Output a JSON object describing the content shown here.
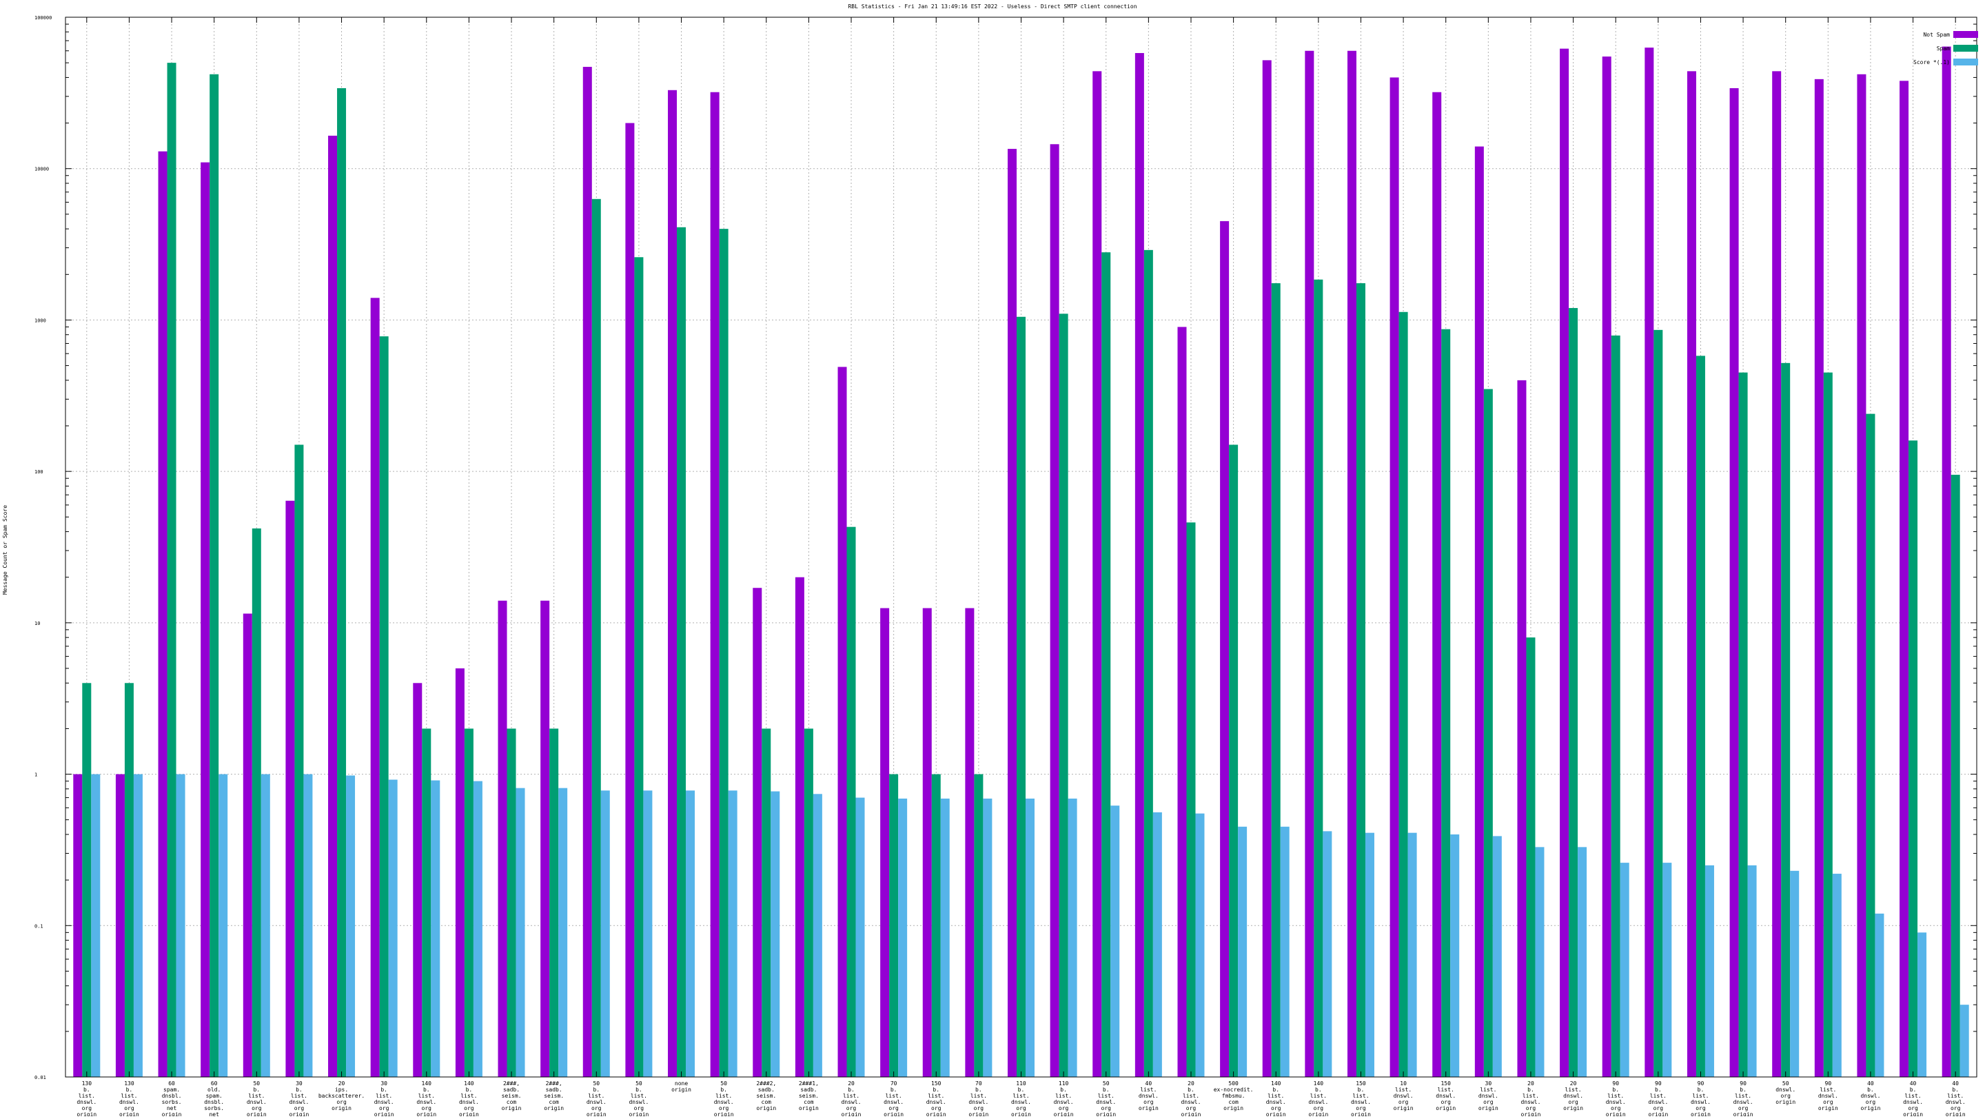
{
  "chart_data": {
    "type": "bar",
    "title": "RBL Statistics - Fri Jan 21 13:49:16 EST 2022 - Useless - Direct SMTP client connection",
    "ylabel": "Message Count or Spam Score",
    "xlabel": "",
    "y_scale": "log",
    "ylim": [
      0.01,
      100000
    ],
    "y_ticks": [
      "0.01",
      "0.1",
      "1",
      "10",
      "100",
      "1000",
      "10000",
      "100000"
    ],
    "grid": true,
    "legend_position": "top-right",
    "categories": [
      "130 b. list. dnswl. org origin",
      "130 b. list. dnswl. org origin",
      "60 spam. dnsbl. sorbs. net origin",
      "60 old. spam. dnsbl. sorbs. net origin",
      "50 b. list. dnswl. org origin",
      "30 b. list. dnswl. org origin",
      "20 ips. backscatterer. org origin",
      "30 b. list. dnswl. org origin",
      "140 b. list. dnswl. org origin",
      "140 b. list. dnswl. org origin",
      "2###, sadb. seism. com origin",
      "2###, sadb. seism. com origin",
      "50 b. list. dnswl. org origin",
      "50 b. list. dnswl. org origin",
      "none origin",
      "50 b. list. dnswl. org origin",
      "2###2, sadb. seism. com origin",
      "2###1, sadb. seism. com origin",
      "20 b. list. dnswl. org origin",
      "70 b. list. dnswl. org origin",
      "150 b. list. dnswl. org origin",
      "70 b. list. dnswl. org origin",
      "110 b. list. dnswl. org origin",
      "110 b. list. dnswl. org origin",
      "50 b. list. dnswl. org origin",
      "40 list. dnswl. org origin",
      "20 b. list. dnswl. org origin",
      "500 ex-nocredit. fmbsmu. com origin",
      "140 b. list. dnswl. org origin",
      "140 b. list. dnswl. org origin",
      "150 b. list. dnswl. org origin",
      "10 list. dnswl. org origin",
      "150 list. dnswl. org origin",
      "30 list. dnswl. org origin",
      "20 b. list. dnswl. org origin",
      "20 list. dnswl. org origin",
      "90 b. list. dnswl. org origin",
      "90 b. list. dnswl. org origin",
      "90 b. list. dnswl. org origin",
      "90 b. list. dnswl. org origin",
      "50 dnswl. org origin",
      "90 list. dnswl. org origin",
      "40 b. dnswl. org origin",
      "40 b. list. dnswl. org origin",
      "40 b. list. dnswl. org origin"
    ],
    "series": [
      {
        "name": "Not Spam",
        "color": "#9400d3",
        "values": [
          1,
          1,
          13000,
          11000,
          11.5,
          64,
          16500,
          1400,
          4,
          5,
          14,
          14,
          47000,
          20000,
          33000,
          32000,
          17,
          20,
          490,
          12.5,
          12.5,
          12.5,
          13500,
          14500,
          44000,
          58000,
          900,
          4500,
          52000,
          60000,
          60000,
          40000,
          32000,
          14000,
          400,
          62000,
          55000,
          63000,
          44000,
          34000,
          44000,
          39000,
          42000,
          38000,
          64000
        ]
      },
      {
        "name": "Spam",
        "color": "#009e73",
        "values": [
          4,
          4,
          50000,
          42000,
          42,
          150,
          34000,
          780,
          2,
          2,
          2,
          2,
          6300,
          2600,
          4100,
          4000,
          2,
          2,
          43,
          1,
          1,
          1,
          1050,
          1100,
          2800,
          2900,
          46,
          150,
          1750,
          1850,
          1750,
          1130,
          870,
          350,
          8,
          1200,
          790,
          860,
          580,
          450,
          520,
          450,
          240,
          160,
          95
        ]
      },
      {
        "name": "Score *(.1)",
        "color": "#56b4e9",
        "values": [
          1,
          1,
          1,
          1,
          1,
          1,
          0.98,
          0.92,
          0.91,
          0.9,
          0.81,
          0.81,
          0.78,
          0.78,
          0.78,
          0.78,
          0.77,
          0.74,
          0.7,
          0.69,
          0.69,
          0.69,
          0.69,
          0.69,
          0.62,
          0.56,
          0.55,
          0.45,
          0.45,
          0.42,
          0.41,
          0.41,
          0.4,
          0.39,
          0.33,
          0.33,
          0.26,
          0.26,
          0.25,
          0.25,
          0.23,
          0.22,
          0.12,
          0.09,
          0.03
        ]
      }
    ]
  }
}
